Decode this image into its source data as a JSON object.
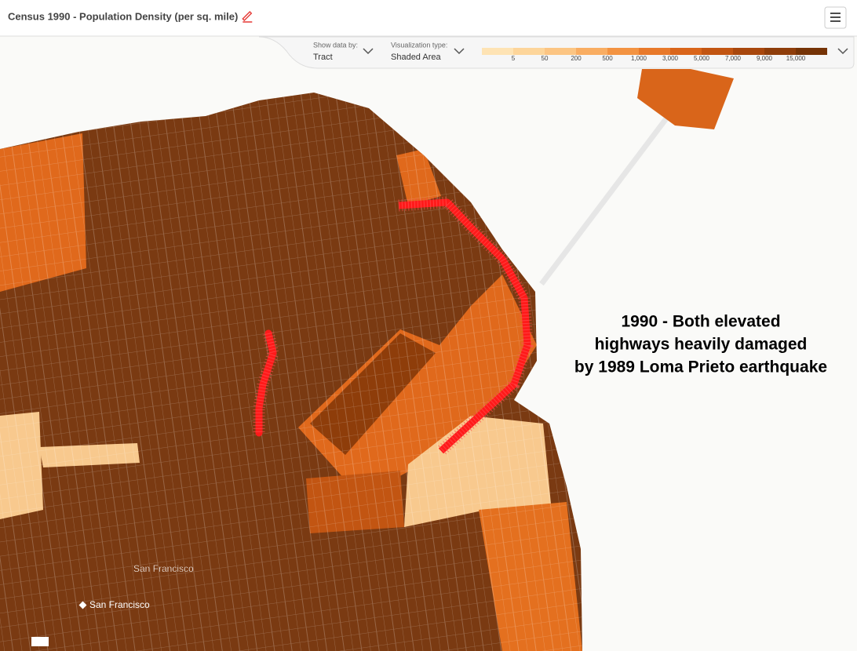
{
  "header": {
    "title": "Census 1990 - Population Density (per sq. mile)"
  },
  "controls": {
    "show_data_by": {
      "label": "Show data by:",
      "value": "Tract"
    },
    "visualization_type": {
      "label": "Visualization type:",
      "value": "Shaded Area"
    }
  },
  "legend": {
    "labels": [
      "5",
      "50",
      "200",
      "500",
      "1,000",
      "3,000",
      "5,000",
      "7,000",
      "9,000",
      "15,000"
    ],
    "colors": [
      "#fee3b4",
      "#fdd59a",
      "#fcc583",
      "#f9ad62",
      "#f39342",
      "#e8792a",
      "#d9651a",
      "#c25512",
      "#a8470d",
      "#8e3d0a",
      "#753306"
    ]
  },
  "annotation": {
    "lines": [
      "1990 - Both elevated",
      "highways heavily damaged",
      "by 1989 Loma Prieto earthquake"
    ]
  },
  "place_labels": [
    "San Francisco",
    "San Francisco"
  ]
}
